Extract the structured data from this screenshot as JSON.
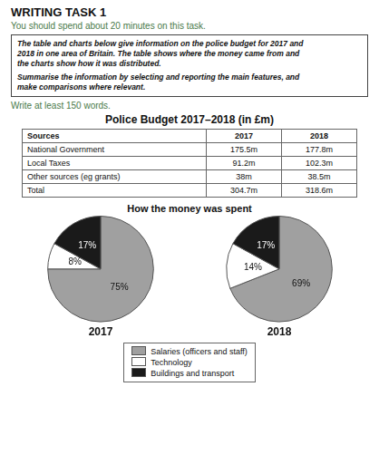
{
  "task": {
    "title": "WRITING TASK 1",
    "subtitle": "You should spend about 20 minutes on this task.",
    "prompt": [
      [
        "The table and charts below give information on the police budget for 2017 and",
        "2018 in one area of Britain. The table shows where the money came from and",
        "the charts show how it was distributed."
      ],
      [
        "Summarise the information by selecting and reporting the main features, and",
        "make comparisons where relevant."
      ]
    ],
    "note": "Write at least 150 words."
  },
  "table": {
    "title": "Police Budget 2017–2018 (in £m)",
    "headers": [
      "Sources",
      "2017",
      "2018"
    ],
    "rows": [
      [
        "National Government",
        "175.5m",
        "177.8m"
      ],
      [
        "Local Taxes",
        "91.2m",
        "102.3m"
      ],
      [
        "Other sources (eg grants)",
        "38m",
        "38.5m"
      ],
      [
        "Total",
        "304.7m",
        "318.6m"
      ]
    ]
  },
  "charts_title": "How the money was spent",
  "legend": "bottom",
  "chart_data": [
    {
      "type": "pie",
      "title": "2017",
      "categories": [
        "Salaries (officers and staff)",
        "Technology",
        "Buildings and transport"
      ],
      "values": [
        75,
        8,
        17
      ],
      "value_labels": [
        "75%",
        "8%",
        "17%"
      ],
      "colors": [
        "#a0a0a0",
        "#ffffff",
        "#1a1a1a"
      ],
      "data_labels": true
    },
    {
      "type": "pie",
      "title": "2018",
      "categories": [
        "Salaries (officers and staff)",
        "Technology",
        "Buildings and transport"
      ],
      "values": [
        69,
        14,
        17
      ],
      "value_labels": [
        "69%",
        "14%",
        "17%"
      ],
      "colors": [
        "#a0a0a0",
        "#ffffff",
        "#1a1a1a"
      ],
      "data_labels": true
    }
  ]
}
